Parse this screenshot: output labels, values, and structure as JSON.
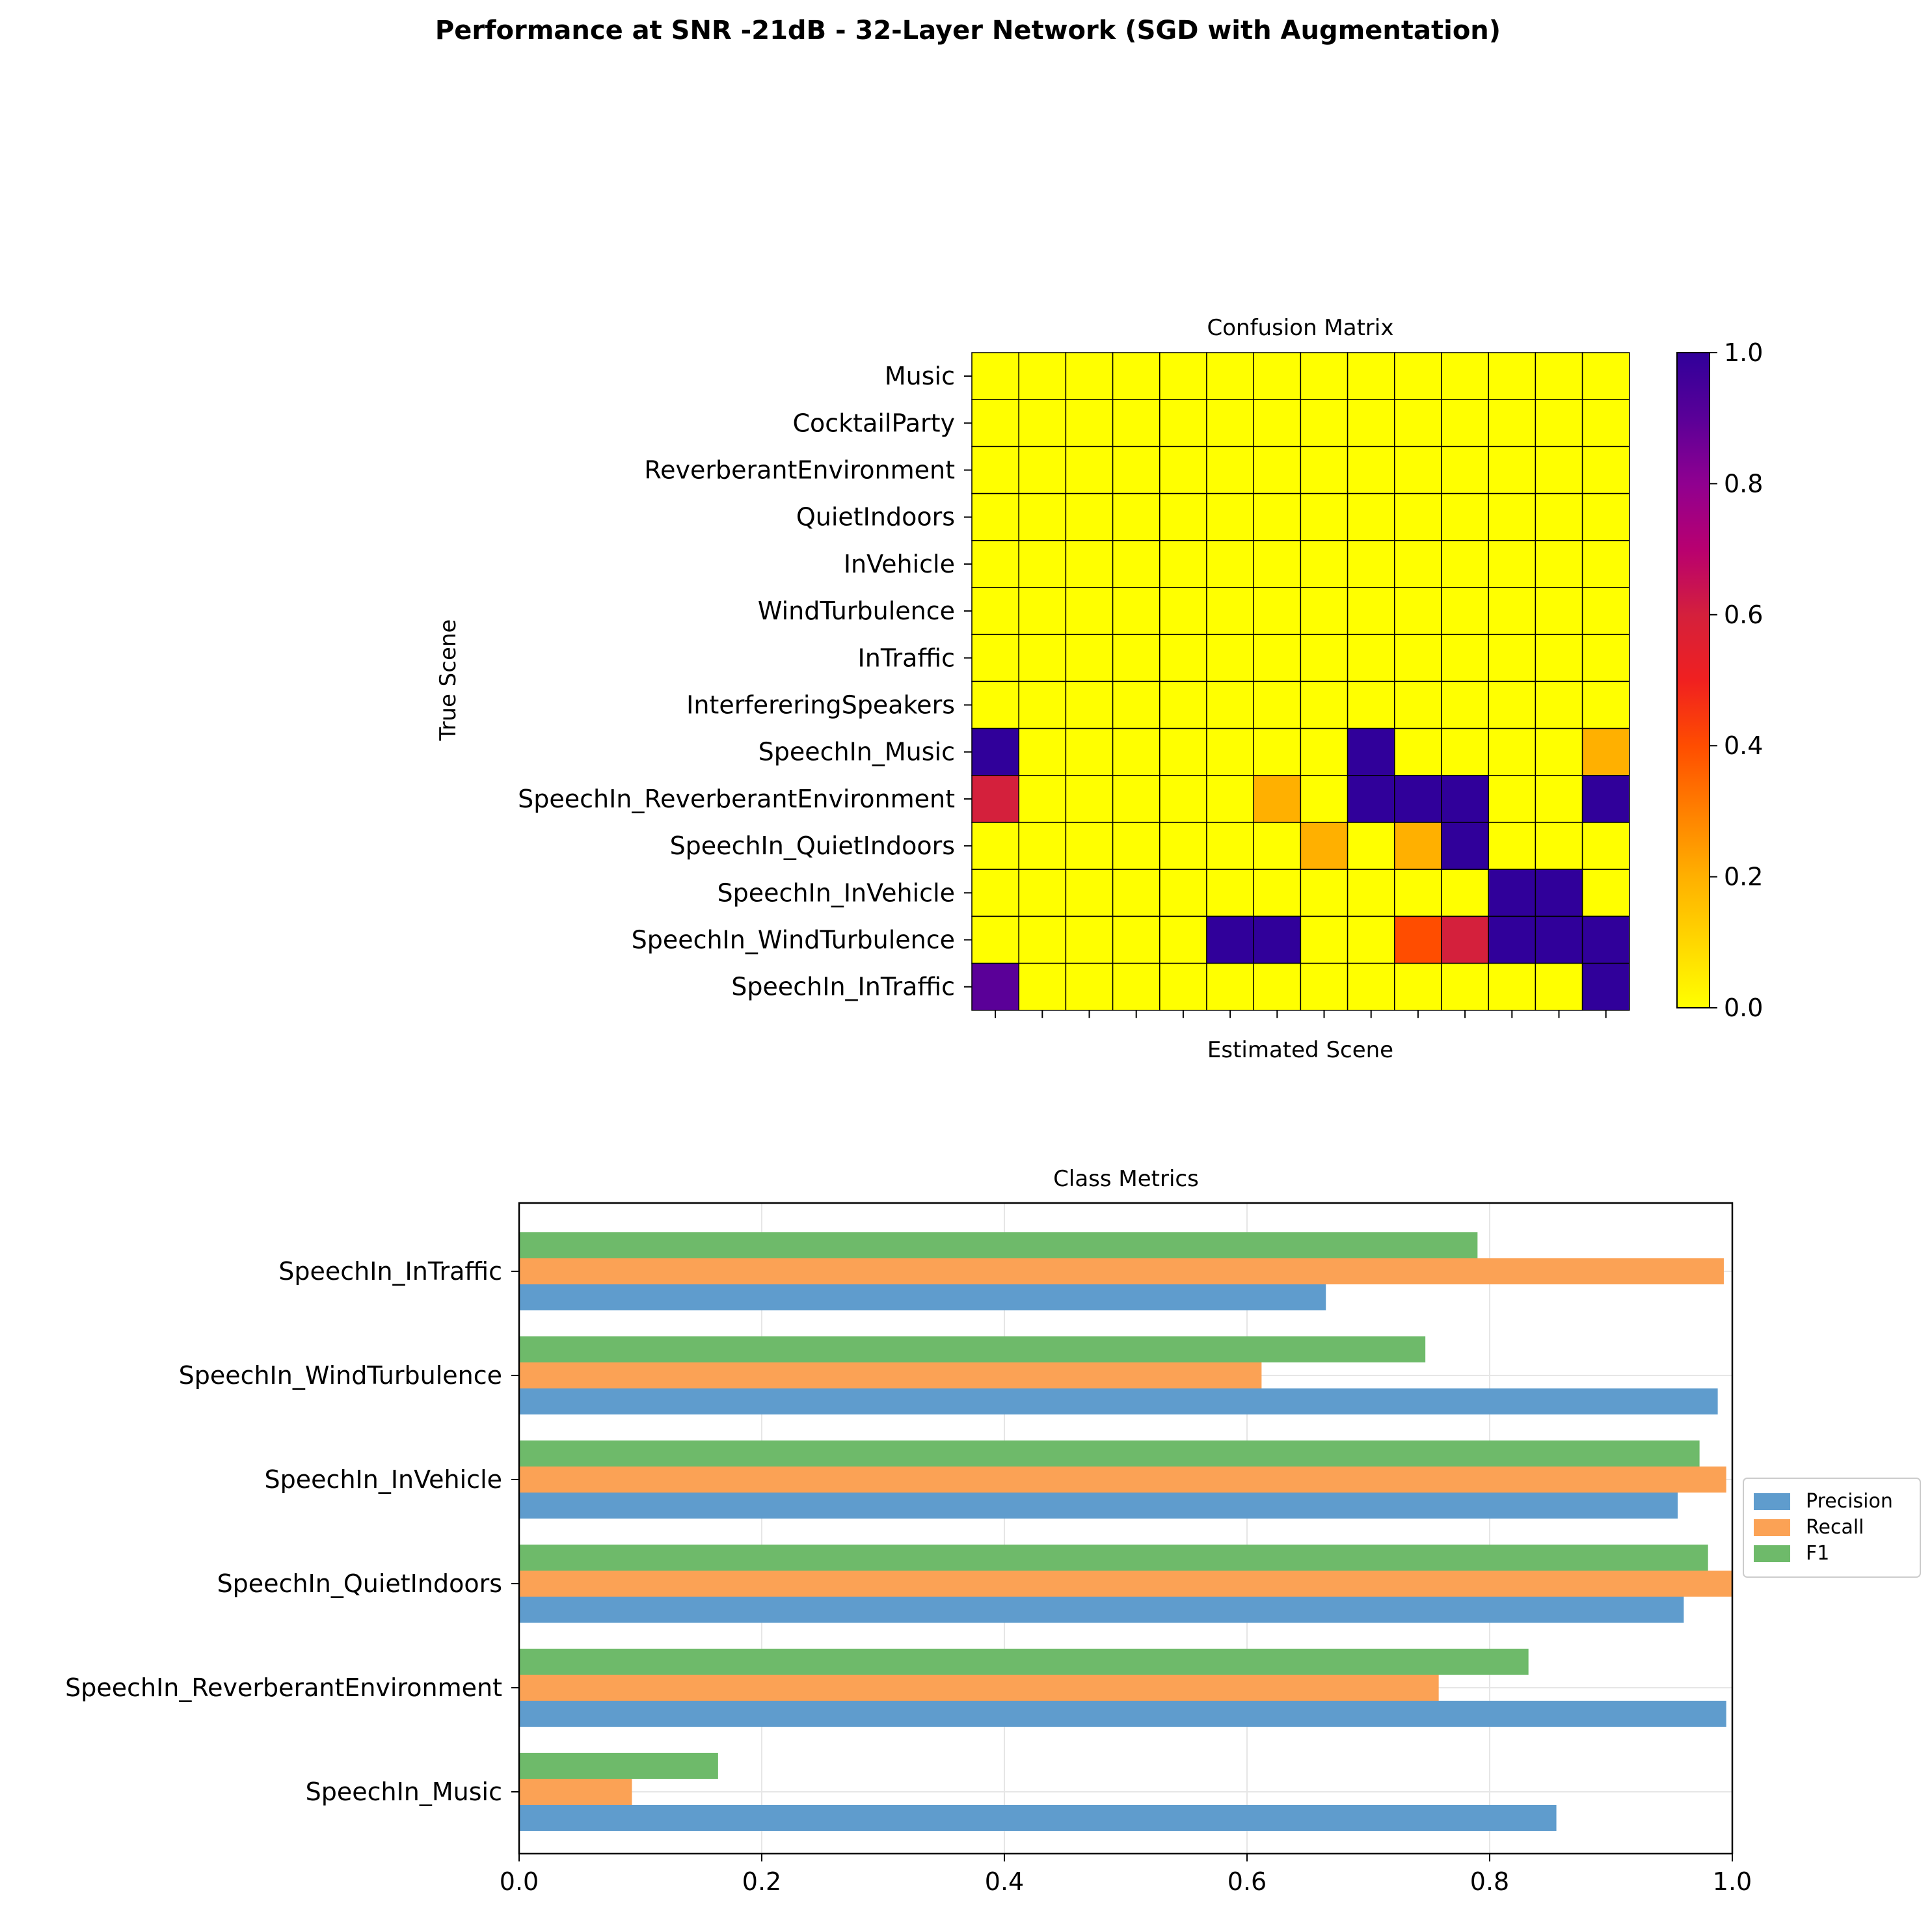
{
  "figure_title": "Performance at SNR -21dB - 32-Layer Network (SGD with Augmentation)",
  "chart_data": [
    {
      "type": "heatmap",
      "title": "Confusion Matrix",
      "xlabel": "Estimated Scene",
      "ylabel": "True Scene",
      "rows": [
        "Music",
        "CocktailParty",
        "ReverberantEnvironment",
        "QuietIndoors",
        "InVehicle",
        "WindTurbulence",
        "InTraffic",
        "InterfereringSpeakers",
        "SpeechIn_Music",
        "SpeechIn_ReverberantEnvironment",
        "SpeechIn_QuietIndoors",
        "SpeechIn_InVehicle",
        "SpeechIn_WindTurbulence",
        "SpeechIn_InTraffic"
      ],
      "x_tick_labels_visible": false,
      "values": [
        [
          0,
          0,
          0,
          0,
          0,
          0,
          0,
          0,
          0,
          0,
          0,
          0,
          0,
          0
        ],
        [
          0,
          0,
          0,
          0,
          0,
          0,
          0,
          0,
          0,
          0,
          0,
          0,
          0,
          0
        ],
        [
          0,
          0,
          0,
          0,
          0,
          0,
          0,
          0,
          0,
          0,
          0,
          0,
          0,
          0
        ],
        [
          0,
          0,
          0,
          0,
          0,
          0,
          0,
          0,
          0,
          0,
          0,
          0,
          0,
          0
        ],
        [
          0,
          0,
          0,
          0,
          0,
          0,
          0,
          0,
          0,
          0,
          0,
          0,
          0,
          0
        ],
        [
          0,
          0,
          0,
          0,
          0,
          0,
          0,
          0,
          0,
          0,
          0,
          0,
          0,
          0
        ],
        [
          0,
          0,
          0,
          0,
          0,
          0,
          0,
          0,
          0,
          0,
          0,
          0,
          0,
          0
        ],
        [
          0,
          0,
          0,
          0,
          0,
          0,
          0,
          0,
          0,
          0,
          0,
          0,
          0,
          0
        ],
        [
          1,
          0,
          0,
          0,
          0,
          0,
          0,
          0,
          1,
          0,
          0,
          0,
          0,
          0.2
        ],
        [
          0.6,
          0,
          0,
          0,
          0,
          0,
          0.2,
          0,
          1,
          1,
          1,
          0,
          0,
          1
        ],
        [
          0,
          0,
          0,
          0,
          0,
          0,
          0,
          0.2,
          0,
          0.2,
          1,
          0,
          0,
          0
        ],
        [
          0,
          0,
          0,
          0,
          0,
          0,
          0,
          0,
          0,
          0,
          0,
          1,
          1,
          0
        ],
        [
          0,
          0,
          0,
          0,
          0,
          1,
          1,
          0,
          0,
          0.4,
          0.6,
          1,
          1,
          1
        ],
        [
          0.9,
          0,
          0,
          0,
          0,
          0,
          0,
          0,
          0,
          0,
          0,
          0,
          0,
          1
        ]
      ],
      "colorbar": {
        "colormap": "plasma_r",
        "range": [
          0.0,
          1.0
        ],
        "ticks": [
          "0.0",
          "0.2",
          "0.4",
          "0.6",
          "0.8",
          "1.0"
        ]
      }
    },
    {
      "type": "bar",
      "orientation": "horizontal",
      "title": "Class Metrics",
      "categories": [
        "SpeechIn_Music",
        "SpeechIn_ReverberantEnvironment",
        "SpeechIn_QuietIndoors",
        "SpeechIn_InVehicle",
        "SpeechIn_WindTurbulence",
        "SpeechIn_InTraffic"
      ],
      "series": [
        {
          "name": "Precision",
          "color": "#5f9ccd",
          "values": [
            0.855,
            0.995,
            0.96,
            0.955,
            0.988,
            0.665
          ]
        },
        {
          "name": "Recall",
          "color": "#fba255",
          "values": [
            0.093,
            0.758,
            1.0,
            0.995,
            0.612,
            0.993
          ]
        },
        {
          "name": "F1",
          "color": "#6eba6a",
          "values": [
            0.164,
            0.832,
            0.98,
            0.973,
            0.747,
            0.79
          ]
        }
      ],
      "xlim": [
        0.0,
        1.0
      ],
      "x_ticks": [
        "0.0",
        "0.2",
        "0.4",
        "0.6",
        "0.8",
        "1.0"
      ],
      "grid": true,
      "legend_position": "center-right outside"
    }
  ]
}
